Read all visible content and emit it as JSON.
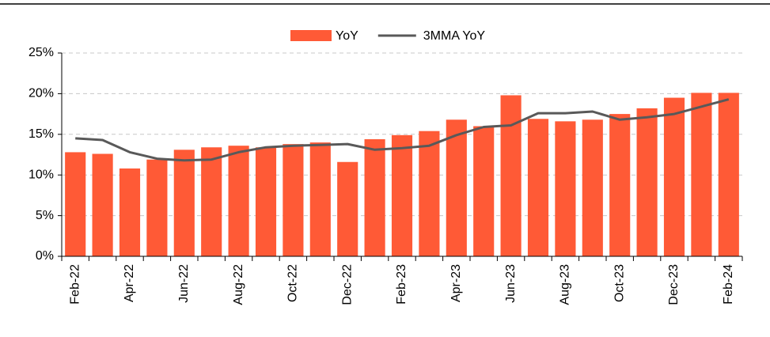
{
  "chart_data": {
    "type": "bar",
    "categories": [
      "Feb-22",
      null,
      "Apr-22",
      null,
      "Jun-22",
      null,
      "Aug-22",
      null,
      "Oct-22",
      null,
      "Dec-22",
      null,
      "Feb-23",
      null,
      "Apr-23",
      null,
      "Jun-23",
      null,
      "Aug-23",
      null,
      "Oct-23",
      null,
      "Dec-23",
      null,
      "Feb-24"
    ],
    "series": [
      {
        "name": "YoY",
        "type": "bar",
        "color": "#ff5a36",
        "values": [
          12.8,
          12.6,
          10.8,
          11.9,
          13.1,
          13.4,
          13.6,
          13.4,
          13.8,
          14.0,
          11.6,
          14.4,
          14.9,
          15.4,
          16.8,
          16.0,
          19.8,
          16.9,
          16.6,
          16.8,
          17.5,
          18.2,
          19.5,
          20.1,
          20.1
        ]
      },
      {
        "name": "3MMA YoY",
        "type": "line",
        "color": "#595959",
        "values": [
          14.5,
          14.3,
          12.8,
          12.0,
          11.8,
          11.9,
          12.8,
          13.4,
          13.6,
          13.7,
          13.8,
          13.1,
          13.3,
          13.6,
          14.9,
          15.9,
          16.1,
          17.6,
          17.6,
          17.8,
          16.8,
          17.1,
          17.5,
          18.4,
          19.3
        ]
      }
    ],
    "ylim": [
      0,
      25
    ],
    "yticks": [
      {
        "value": 0,
        "label": "0%"
      },
      {
        "value": 5,
        "label": "5%"
      },
      {
        "value": 10,
        "label": "10%"
      },
      {
        "value": 15,
        "label": "15%"
      },
      {
        "value": 20,
        "label": "20%"
      },
      {
        "value": 25,
        "label": "25%"
      }
    ],
    "grid": true,
    "legend": "top"
  }
}
